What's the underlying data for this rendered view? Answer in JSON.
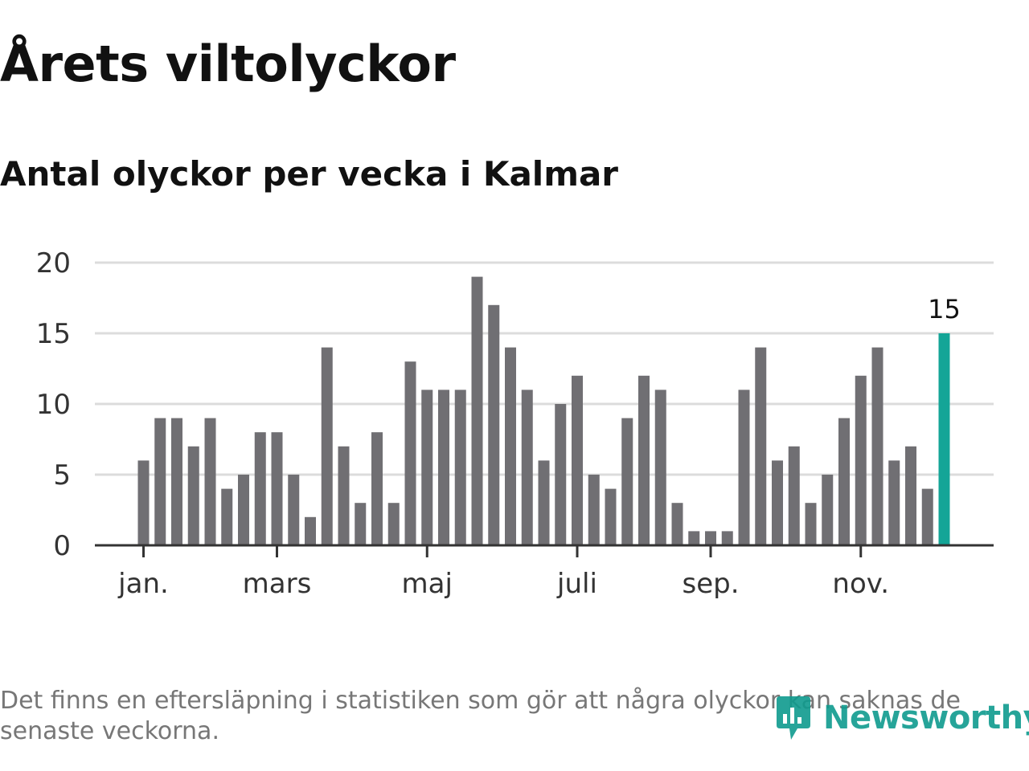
{
  "header": {
    "title": "Årets viltolyckor",
    "subtitle": "Antal olyckor per vecka i Kalmar"
  },
  "footer": {
    "note": "Det finns en eftersläpning i statistiken som gör att några olyckor kan saknas de senaste veckorna.",
    "brand": "Newsworthy",
    "brand_icon": "newsworthy-logo-icon",
    "brand_color": "#0f9b8e"
  },
  "chart_data": {
    "type": "bar",
    "title": "Antal olyckor per vecka i Kalmar",
    "xlabel": "",
    "ylabel": "",
    "ylim": [
      0,
      20
    ],
    "yticks": [
      0,
      5,
      10,
      15,
      20
    ],
    "grid": true,
    "month_labels": [
      "jan.",
      "mars",
      "maj",
      "juli",
      "sep.",
      "nov."
    ],
    "month_label_weeks": [
      1,
      9,
      18,
      27,
      35,
      44
    ],
    "weeks": [
      1,
      2,
      3,
      4,
      5,
      6,
      7,
      8,
      9,
      10,
      11,
      12,
      13,
      14,
      15,
      16,
      17,
      18,
      19,
      20,
      21,
      22,
      23,
      24,
      25,
      26,
      27,
      28,
      29,
      30,
      31,
      32,
      33,
      34,
      35,
      36,
      37,
      38,
      39,
      40,
      41,
      42,
      43,
      44,
      45,
      46,
      47,
      48,
      49
    ],
    "values": [
      6,
      9,
      9,
      7,
      9,
      4,
      5,
      8,
      8,
      5,
      2,
      14,
      7,
      3,
      8,
      3,
      13,
      11,
      11,
      11,
      19,
      17,
      14,
      11,
      6,
      10,
      12,
      5,
      4,
      9,
      12,
      11,
      3,
      1,
      1,
      1,
      11,
      14,
      6,
      7,
      3,
      5,
      9,
      12,
      14,
      6,
      7,
      4,
      15
    ],
    "highlight_index": 48,
    "highlight_label": "15",
    "colors": {
      "bar": "#706f73",
      "highlight": "#14a597",
      "grid": "#dcdcdc",
      "axis": "#333333",
      "tick_text": "#333333"
    }
  }
}
